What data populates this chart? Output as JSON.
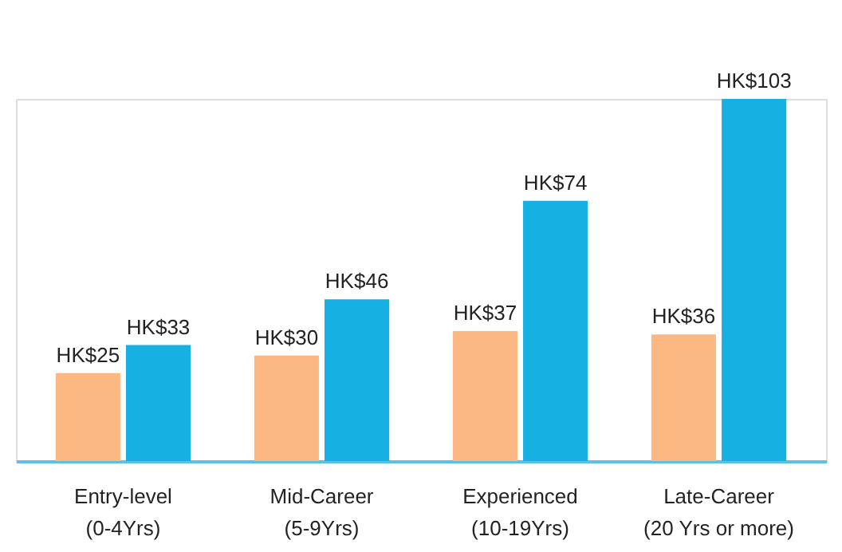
{
  "chart_data": {
    "type": "bar",
    "categories": [
      "Entry-level\n(0-4Yrs)",
      "Mid-Career\n(5-9Yrs)",
      "Experienced\n(10-19Yrs)",
      "Late-Career\n(20 Yrs or more)"
    ],
    "series": [
      {
        "color": "#fbb883",
        "values": [
          25,
          30,
          37,
          36
        ],
        "value_labels": [
          "HK$25",
          "HK$30",
          "HK$37",
          "HK$36"
        ]
      },
      {
        "color": "#16b0e2",
        "values": [
          33,
          46,
          74,
          103
        ],
        "value_labels": [
          "HK$33",
          "HK$46",
          "HK$74",
          "HK$103"
        ]
      }
    ],
    "legend": false,
    "grid": false
  }
}
